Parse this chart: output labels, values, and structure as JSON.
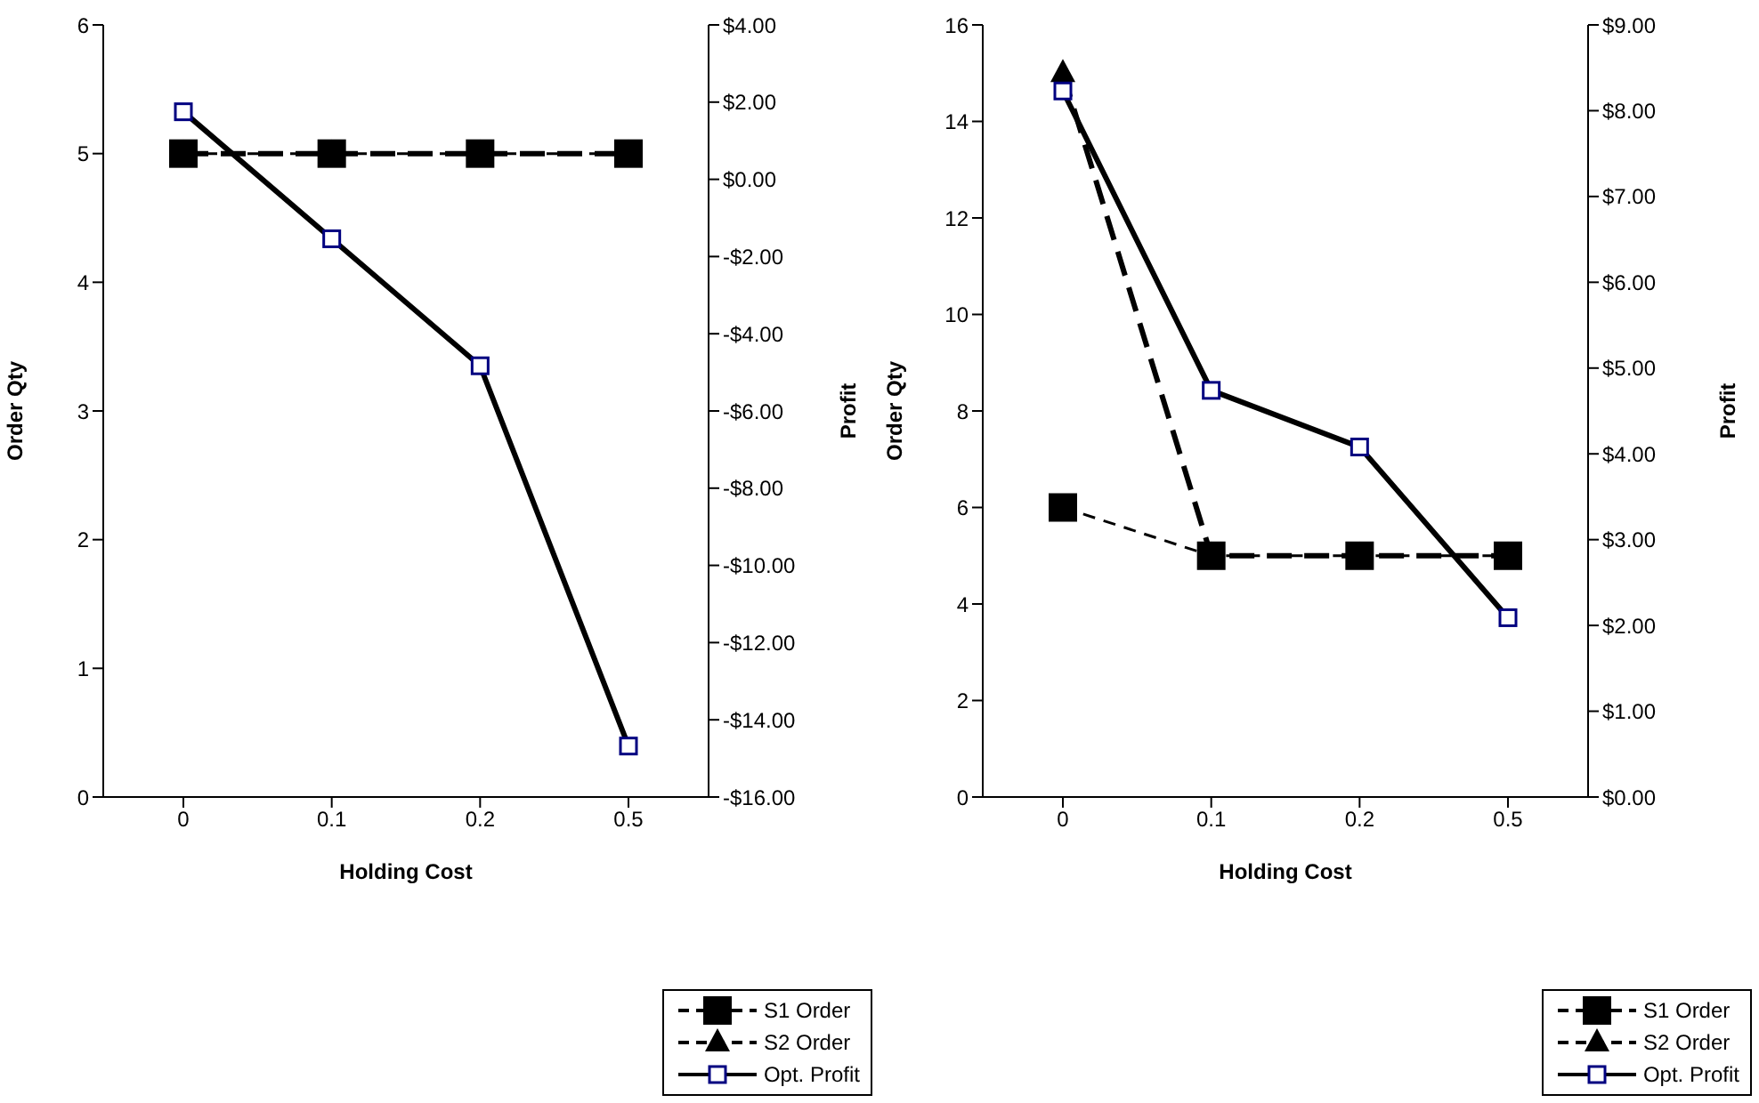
{
  "chart_data": [
    {
      "type": "line",
      "xlabel": "Holding Cost",
      "ylabel": "Order Qty",
      "y2label": "Profit",
      "categories": [
        "0",
        "0.1",
        "0.2",
        "0.5"
      ],
      "series": [
        {
          "name": "S1 Order",
          "color": "#000000",
          "values": [
            5,
            5,
            5,
            5
          ],
          "marker": "square",
          "line_style": "dashed"
        },
        {
          "name": "S2 Order",
          "color": "#000000",
          "values": [
            5,
            5,
            5,
            5
          ],
          "marker": "triangle",
          "line_style": "dashed"
        },
        {
          "name": "Opt. Profit",
          "color": "#000080",
          "values": [
            1.75,
            -1.54,
            -4.83,
            -14.68
          ],
          "marker": "square",
          "line_style": "solid",
          "axis": "y2"
        }
      ],
      "ylim": [
        0,
        6
      ],
      "yticks": [
        0,
        1,
        2,
        3,
        4,
        5,
        6
      ],
      "y2lim": [
        -16,
        4
      ],
      "y2ticks": [
        {
          "value": 4,
          "label": "$4.00"
        },
        {
          "value": 2,
          "label": "$2.00"
        },
        {
          "value": 0,
          "label": "$0.00"
        },
        {
          "value": -2,
          "label": "-$2.00"
        },
        {
          "value": -4,
          "label": "-$4.00"
        },
        {
          "value": -6,
          "label": "-$6.00"
        },
        {
          "value": -8,
          "label": "-$8.00"
        },
        {
          "value": -10,
          "label": "-$10.00"
        },
        {
          "value": -12,
          "label": "-$12.00"
        },
        {
          "value": -14,
          "label": "-$14.00"
        },
        {
          "value": -16,
          "label": "-$16.00"
        }
      ],
      "grid": false,
      "legend": "bottom right"
    },
    {
      "type": "line",
      "xlabel": "Holding Cost",
      "ylabel": "Order Qty",
      "y2label": "Profit",
      "categories": [
        "0",
        "0.1",
        "0.2",
        "0.5"
      ],
      "series": [
        {
          "name": "S1 Order",
          "color": "#000000",
          "values": [
            6,
            5,
            5,
            5
          ],
          "marker": "square",
          "line_style": "dashed"
        },
        {
          "name": "S2 Order",
          "color": "#000000",
          "values": [
            15,
            5,
            5,
            5
          ],
          "marker": "triangle",
          "line_style": "dashed"
        },
        {
          "name": "Opt. Profit",
          "color": "#000080",
          "values": [
            8.23,
            4.74,
            4.08,
            2.09
          ],
          "marker": "square",
          "line_style": "solid",
          "axis": "y2"
        }
      ],
      "ylim": [
        0,
        16
      ],
      "yticks": [
        0,
        2,
        4,
        6,
        8,
        10,
        12,
        14,
        16
      ],
      "y2lim": [
        0,
        9
      ],
      "y2ticks": [
        {
          "value": 9,
          "label": "$9.00"
        },
        {
          "value": 8,
          "label": "$8.00"
        },
        {
          "value": 7,
          "label": "$7.00"
        },
        {
          "value": 6,
          "label": "$6.00"
        },
        {
          "value": 5,
          "label": "$5.00"
        },
        {
          "value": 4,
          "label": "$4.00"
        },
        {
          "value": 3,
          "label": "$3.00"
        },
        {
          "value": 2,
          "label": "$2.00"
        },
        {
          "value": 1,
          "label": "$1.00"
        },
        {
          "value": 0,
          "label": "$0.00"
        }
      ],
      "grid": false,
      "legend": "bottom right"
    }
  ]
}
